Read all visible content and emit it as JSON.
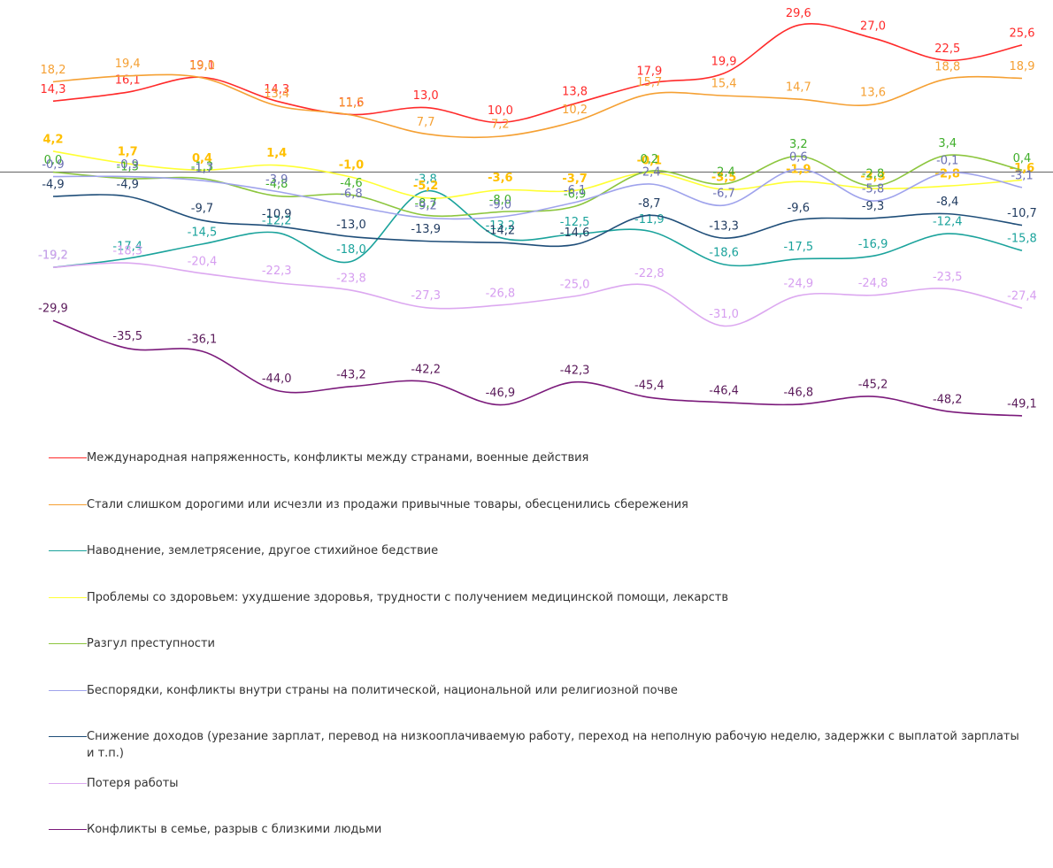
{
  "chart_data": {
    "type": "line",
    "categories": [
      null,
      null,
      null,
      null,
      null,
      null,
      null,
      null,
      null,
      null,
      null,
      null,
      null,
      null
    ],
    "ylim": [
      -50,
      32
    ],
    "baseline": 0,
    "series": [
      {
        "name": "Международная напряженность, конфликты между странами, военные действия",
        "color": "#ff2a2a",
        "label_color": "#ff2a2a",
        "values": [
          14.3,
          16.1,
          19.1,
          14.3,
          11.6,
          13.0,
          10.0,
          13.8,
          17.9,
          19.9,
          29.6,
          27.0,
          22.5,
          25.6
        ],
        "value_labels": [
          "14,3",
          "16,1",
          "19,1",
          "14,3",
          "11,6",
          "13,0",
          "10,0",
          "13,8",
          "17,9",
          "19,9",
          "29,6",
          "27,0",
          "22,5",
          "25,6"
        ]
      },
      {
        "name": "Стали слишком дорогими или исчезли из продажи привычные товары, обесценились сбережения",
        "color": "#f5a033",
        "label_color": "#f5a033",
        "values": [
          18.2,
          19.4,
          19.0,
          13.4,
          11.5,
          7.7,
          7.2,
          10.2,
          15.7,
          15.4,
          14.7,
          13.6,
          18.8,
          18.9
        ],
        "value_labels": [
          "18,2",
          "19,4",
          "19,0",
          "13,4",
          "11,5",
          "7,7",
          "7,2",
          "10,2",
          "15,7",
          "15,4",
          "14,7",
          "13,6",
          "18,8",
          "18,9"
        ]
      },
      {
        "name": "Наводнение, землетрясение, другое стихийное бедствие",
        "color": "#1ba39c",
        "label_color": "#1ba39c",
        "values": [
          -19.2,
          -17.4,
          -14.5,
          -12.2,
          -18.0,
          -3.8,
          -13.2,
          -12.5,
          -11.9,
          -18.6,
          -17.5,
          -16.9,
          -12.4,
          -15.8
        ],
        "value_labels": [
          "-19,2",
          "-17,4",
          "-14,5",
          "-12,2",
          "-18,0",
          "-3,8",
          "-13,2",
          "-12,5",
          "-11,9",
          "-18,6",
          "-17,5",
          "-16,9",
          "-12,4",
          "-15,8"
        ]
      },
      {
        "name": "Проблемы со здоровьем: ухудшение здоровья, трудности с получением медицинской помощи, лекарств",
        "color": "#ffff33",
        "label_color": "#ffc000",
        "values": [
          4.2,
          1.7,
          0.4,
          1.4,
          -1.0,
          -5.2,
          -3.6,
          -3.7,
          -0.1,
          -3.5,
          -1.9,
          -3.3,
          -2.8,
          -1.6
        ],
        "value_labels": [
          "4,2",
          "1,7",
          "0,4",
          "1,4",
          "-1,0",
          "-5,2",
          "-3,6",
          "-3,7",
          "-0,1",
          "-3,5",
          "-1,9",
          "-3,3",
          "-2,8",
          "-1,6"
        ]
      },
      {
        "name": "Разгул преступности",
        "color": "#8dc63f",
        "label_color": "#3fae2a",
        "values": [
          0.0,
          -1.3,
          -1.3,
          -4.8,
          -4.6,
          -8.7,
          -8.0,
          -6.9,
          0.2,
          -2.4,
          3.2,
          -2.8,
          3.4,
          0.4
        ],
        "value_labels": [
          "0,0",
          "-1,3",
          "-1,3",
          "-4,8",
          "-4,6",
          "-8,7",
          "-8,0",
          "-6,9",
          "0,2",
          "-2,4",
          "3,2",
          "-2,8",
          "3,4",
          "0,4"
        ]
      },
      {
        "name": "Беспорядки, конфликты внутри страны на политической, национальной или религиозной почве",
        "color": "#9fa3ec",
        "label_color": "#6a6fb3",
        "values": [
          -0.9,
          -0.9,
          -1.7,
          -3.9,
          -6.8,
          -9.2,
          -9.0,
          -6.1,
          -2.4,
          -6.7,
          0.6,
          -5.8,
          -0.1,
          -3.1
        ],
        "value_labels": [
          "-0,9",
          "-0,9",
          "-1,7",
          "-3,9",
          "-6,8",
          "-9,2",
          "-9,0",
          "-6,1",
          "-2,4",
          "-6,7",
          "0,6",
          "-5,8",
          "-0,1",
          "-3,1"
        ]
      },
      {
        "name": "Снижение доходов (урезание зарплат, перевод на низкооплачиваемую работу, переход на неполную рабочую неделю, задержки с выплатой зарплаты и т.п.)",
        "color": "#1f4e79",
        "label_color": "#1f3a5f",
        "values": [
          -4.9,
          -4.9,
          -9.7,
          -10.9,
          -13.0,
          -13.9,
          -14.2,
          -14.6,
          -8.7,
          -13.3,
          -9.6,
          -9.3,
          -8.4,
          -10.7
        ],
        "value_labels": [
          "-4,9",
          "-4,9",
          "-9,7",
          "-10,9",
          "-13,0",
          "-13,9",
          "-14,2",
          "-14,6",
          "-8,7",
          "-13,3",
          "-9,6",
          "-9,3",
          "-8,4",
          "-10,7"
        ]
      },
      {
        "name": "Потеря работы",
        "color": "#dca8f0",
        "label_color": "#d69ef0",
        "values": [
          -19.2,
          -18.3,
          -20.4,
          -22.3,
          -23.8,
          -27.3,
          -26.8,
          -25.0,
          -22.8,
          -31.0,
          -24.9,
          -24.8,
          -23.5,
          -27.4
        ],
        "value_labels": [
          "-19,2",
          "-18,3",
          "-20,4",
          "-22,3",
          "-23,8",
          "-27,3",
          "-26,8",
          "-25,0",
          "-22,8",
          "-31,0",
          "-24,9",
          "-24,8",
          "-23,5",
          "-27,4"
        ]
      },
      {
        "name": "Конфликты в семье, разрыв с близкими людьми",
        "color": "#7b1a7b",
        "label_color": "#5a1a5a",
        "values": [
          -29.9,
          -35.5,
          -36.1,
          -44.0,
          -43.2,
          -42.2,
          -46.9,
          -42.3,
          -45.4,
          -46.4,
          -46.8,
          -45.2,
          -48.2,
          -49.1
        ],
        "value_labels": [
          "-29,9",
          "-35,5",
          "-36,1",
          "-44,0",
          "-43,2",
          "-42,2",
          "-46,9",
          "-42,3",
          "-45,4",
          "-46,4",
          "-46,8",
          "-45,2",
          "-48,2",
          "-49,1"
        ]
      }
    ]
  }
}
